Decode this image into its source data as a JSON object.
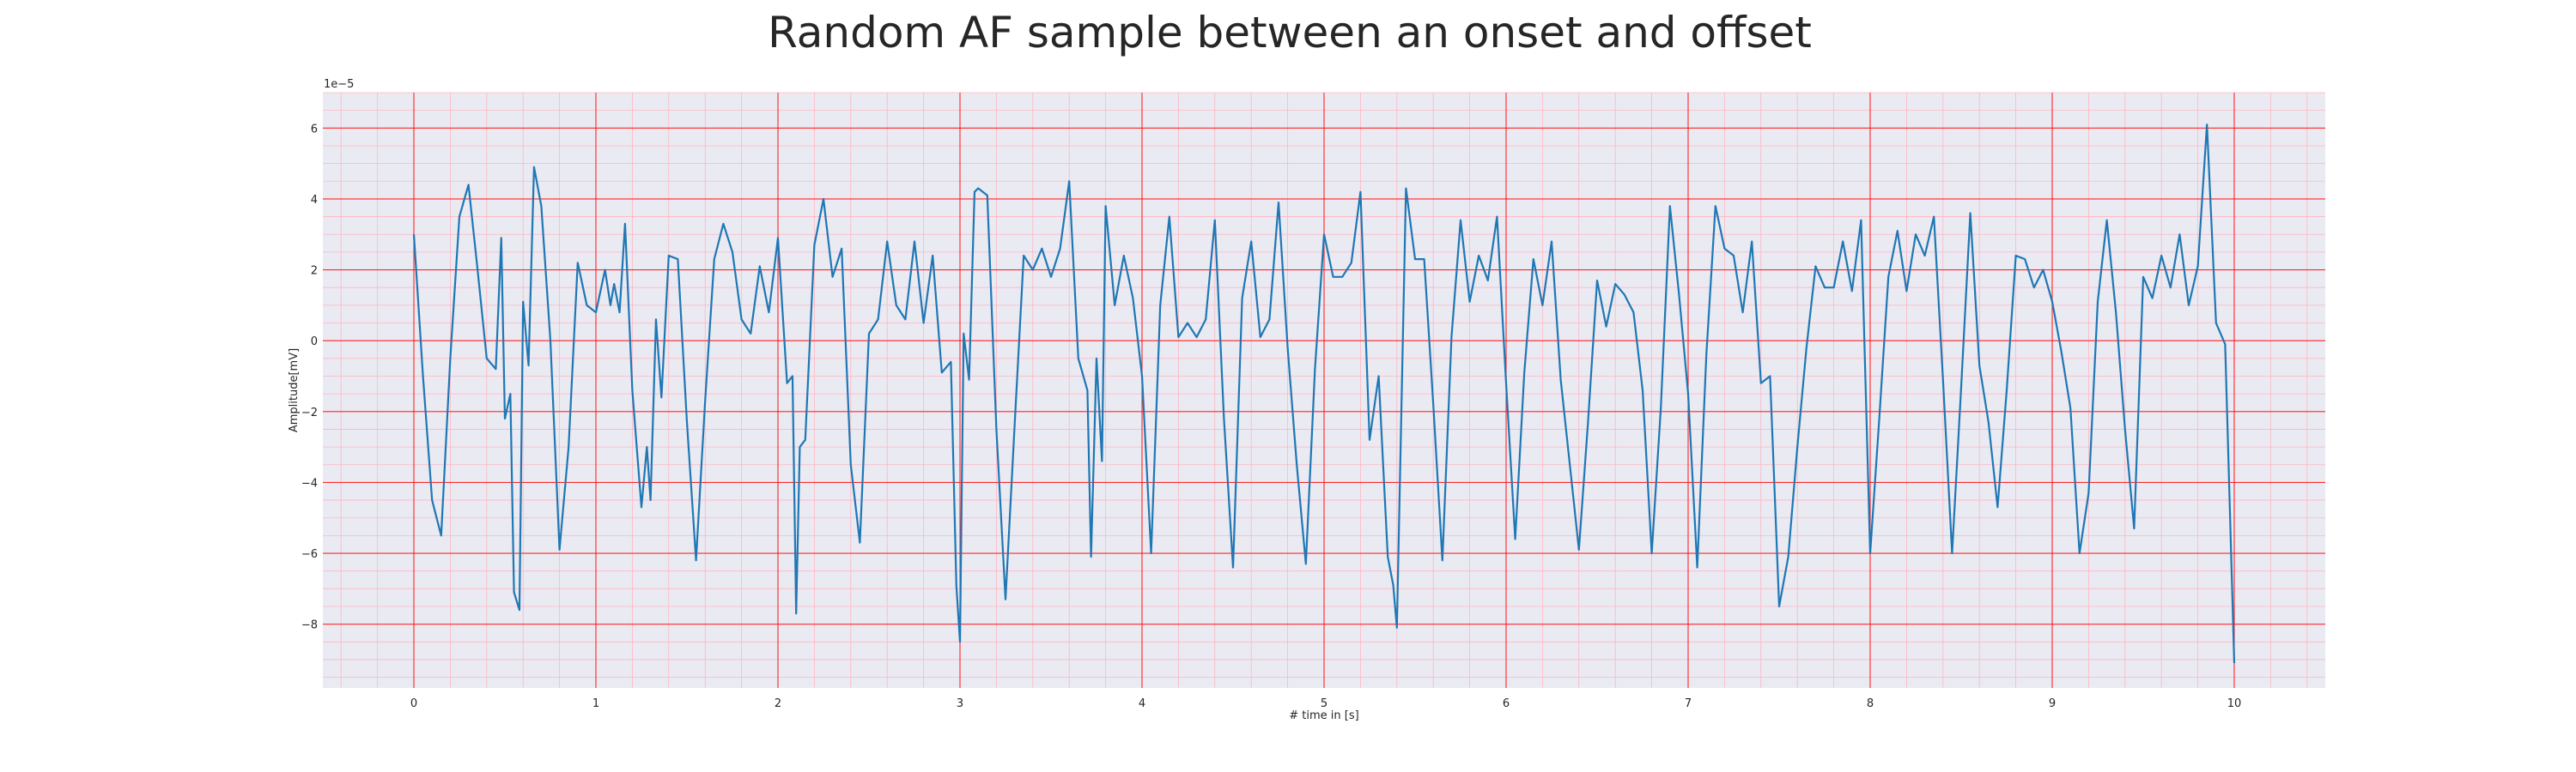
{
  "chart_data": {
    "type": "line",
    "title": "Random AF sample between an onset and offset",
    "xlabel": "# time in [s]",
    "ylabel": "Amplitude[mV]",
    "y_offset_label": "1e−5",
    "y_scale_exponent": -5,
    "xlim": [
      -0.5,
      10.5
    ],
    "ylim": [
      -9.8,
      7.0
    ],
    "x_ticks": [
      0,
      1,
      2,
      3,
      4,
      5,
      6,
      7,
      8,
      9,
      10
    ],
    "y_ticks": [
      -8,
      -6,
      -4,
      -2,
      0,
      2,
      4,
      6
    ],
    "x_tick_labels": [
      "0",
      "1",
      "2",
      "3",
      "4",
      "5",
      "6",
      "7",
      "8",
      "9",
      "10"
    ],
    "y_tick_labels": [
      "−8",
      "−6",
      "−4",
      "−2",
      "0",
      "2",
      "4",
      "6"
    ],
    "grid": true,
    "minor_grid": true,
    "colors": {
      "background": "#eaeaf2",
      "major_grid": "#ff0000",
      "minor_grid": "#ffb6c1",
      "line": "#1f77b4",
      "text": "#262626"
    },
    "series": [
      {
        "x": [
          0.0,
          0.05,
          0.1,
          0.15,
          0.2,
          0.25,
          0.3,
          0.35,
          0.4,
          0.45,
          0.48,
          0.5,
          0.53,
          0.55,
          0.58,
          0.6,
          0.63,
          0.66,
          0.7,
          0.75,
          0.8,
          0.85,
          0.9,
          0.95,
          1.0,
          1.05,
          1.08,
          1.1,
          1.13,
          1.16,
          1.2,
          1.25,
          1.28,
          1.3,
          1.33,
          1.36,
          1.4,
          1.45,
          1.5,
          1.55,
          1.6,
          1.65,
          1.7,
          1.75,
          1.8,
          1.85,
          1.9,
          1.95,
          2.0,
          2.05,
          2.08,
          2.1,
          2.12,
          2.15,
          2.2,
          2.25,
          2.3,
          2.35,
          2.4,
          2.45,
          2.5,
          2.55,
          2.6,
          2.65,
          2.7,
          2.75,
          2.8,
          2.85,
          2.9,
          2.95,
          2.98,
          3.0,
          3.02,
          3.05,
          3.08,
          3.1,
          3.15,
          3.2,
          3.25,
          3.3,
          3.35,
          3.4,
          3.45,
          3.5,
          3.55,
          3.6,
          3.65,
          3.7,
          3.72,
          3.75,
          3.78,
          3.8,
          3.85,
          3.9,
          3.95,
          4.0,
          4.05,
          4.1,
          4.15,
          4.2,
          4.25,
          4.3,
          4.35,
          4.4,
          4.45,
          4.5,
          4.55,
          4.6,
          4.65,
          4.7,
          4.75,
          4.8,
          4.85,
          4.9,
          4.95,
          5.0,
          5.05,
          5.1,
          5.15,
          5.2,
          5.25,
          5.3,
          5.35,
          5.38,
          5.4,
          5.45,
          5.5,
          5.55,
          5.6,
          5.65,
          5.7,
          5.75,
          5.8,
          5.85,
          5.9,
          5.95,
          6.0,
          6.05,
          6.1,
          6.15,
          6.2,
          6.25,
          6.3,
          6.35,
          6.4,
          6.45,
          6.5,
          6.55,
          6.6,
          6.65,
          6.7,
          6.75,
          6.8,
          6.85,
          6.9,
          6.95,
          7.0,
          7.05,
          7.1,
          7.15,
          7.2,
          7.25,
          7.3,
          7.35,
          7.4,
          7.45,
          7.5,
          7.55,
          7.6,
          7.65,
          7.7,
          7.75,
          7.8,
          7.85,
          7.9,
          7.95,
          8.0,
          8.05,
          8.1,
          8.15,
          8.2,
          8.25,
          8.3,
          8.35,
          8.4,
          8.45,
          8.5,
          8.55,
          8.6,
          8.65,
          8.7,
          8.75,
          8.8,
          8.85,
          8.9,
          8.95,
          9.0,
          9.05,
          9.1,
          9.15,
          9.2,
          9.25,
          9.3,
          9.35,
          9.4,
          9.45,
          9.5,
          9.55,
          9.6,
          9.65,
          9.7,
          9.75,
          9.8,
          9.85,
          9.9,
          9.95,
          10.0
        ],
        "values": [
          3.0,
          -1.0,
          -4.5,
          -5.5,
          -0.5,
          3.5,
          4.4,
          2.0,
          -0.5,
          -0.8,
          2.9,
          -2.2,
          -1.5,
          -7.1,
          -7.6,
          1.1,
          -0.7,
          4.9,
          3.8,
          0.0,
          -5.9,
          -3.0,
          2.2,
          1.0,
          0.8,
          2.0,
          1.0,
          1.6,
          0.8,
          3.3,
          -1.4,
          -4.7,
          -3.0,
          -4.5,
          0.6,
          -1.6,
          2.4,
          2.3,
          -2.3,
          -6.2,
          -1.7,
          2.3,
          3.3,
          2.5,
          0.6,
          0.2,
          2.1,
          0.8,
          2.9,
          -1.2,
          -1.0,
          -7.7,
          -3.0,
          -2.8,
          2.7,
          4.0,
          1.8,
          2.6,
          -3.5,
          -5.7,
          0.2,
          0.6,
          2.8,
          1.0,
          0.6,
          2.8,
          0.5,
          2.4,
          -0.9,
          -0.6,
          -6.9,
          -8.5,
          0.2,
          -1.1,
          4.2,
          4.3,
          4.1,
          -2.5,
          -7.3,
          -2.4,
          2.4,
          2.0,
          2.6,
          1.8,
          2.6,
          4.5,
          -0.5,
          -1.4,
          -6.1,
          -0.5,
          -3.4,
          3.8,
          1.0,
          2.4,
          1.2,
          -1.0,
          -6.0,
          1.0,
          3.5,
          0.1,
          0.5,
          0.1,
          0.6,
          3.4,
          -2.2,
          -6.4,
          1.2,
          2.8,
          0.1,
          0.6,
          3.9,
          -0.2,
          -3.5,
          -6.3,
          -0.8,
          3.0,
          1.8,
          1.8,
          2.2,
          4.2,
          -2.8,
          -1.0,
          -6.1,
          -6.9,
          -8.1,
          4.3,
          2.3,
          2.3,
          -1.8,
          -6.2,
          0.1,
          3.4,
          1.1,
          2.4,
          1.7,
          3.5,
          -1.2,
          -5.6,
          -0.9,
          2.3,
          1.0,
          2.8,
          -1.1,
          -3.5,
          -5.9,
          -2.3,
          1.7,
          0.4,
          1.6,
          1.3,
          0.8,
          -1.4,
          -6.0,
          -1.9,
          3.8,
          1.3,
          -1.5,
          -6.4,
          -0.4,
          3.8,
          2.6,
          2.4,
          0.8,
          2.8,
          -1.2,
          -1.0,
          -7.5,
          -6.1,
          -3.0,
          -0.2,
          2.1,
          1.5,
          1.5,
          2.8,
          1.4,
          3.4,
          -6.0,
          -2.2,
          1.8,
          3.1,
          1.4,
          3.0,
          2.4,
          3.5,
          -1.1,
          -6.0,
          -1.3,
          3.6,
          -0.7,
          -2.3,
          -4.7,
          -1.4,
          2.4,
          2.3,
          1.5,
          2.0,
          1.1,
          -0.3,
          -1.9,
          -6.0,
          -4.3,
          1.1,
          3.4,
          0.8,
          -2.5,
          -5.3,
          1.8,
          1.2,
          2.4,
          1.5,
          3.0,
          1.0,
          2.1,
          6.1,
          0.5,
          -0.1,
          -9.1
        ]
      }
    ]
  }
}
